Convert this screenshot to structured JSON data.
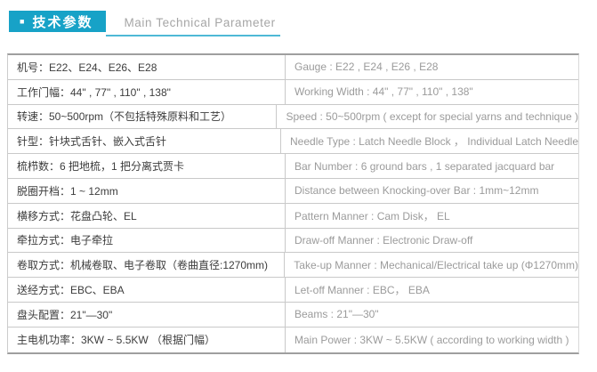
{
  "colors": {
    "accent": "#17a2c7",
    "accent_underline": "#4fb9d6",
    "border_heavy": "#9f9f9f",
    "border_light": "#c9c9c9",
    "text_cn": "#3d3d3d",
    "text_en": "#9b9b9b"
  },
  "header": {
    "bullet": "■",
    "title_cn": "技术参数",
    "title_en": "Main Technical Parameter"
  },
  "table": {
    "rows": [
      {
        "cn": "机号：E22、E24、E26、E28",
        "en": "Gauge : E22 , E24 , E26 , E28"
      },
      {
        "cn": "工作门幅：44\" , 77\" , 110\" , 138\"",
        "en": "Working Width : 44\" , 77\" , 110\" , 138\""
      },
      {
        "cn": "转速：50~500rpm（不包括特殊原料和工艺）",
        "en": "Speed : 50~500rpm ( except for special yarns and technique )"
      },
      {
        "cn": "针型：针块式舌针、嵌入式舌针",
        "en": "Needle Type : Latch Needle Block ， Individual Latch Needle"
      },
      {
        "cn": "梳栉数：6 把地梳，1 把分离式贾卡",
        "en": "Bar Number : 6 ground bars , 1 separated jacquard bar"
      },
      {
        "cn": "脱圈开档：1 ~ 12mm",
        "en": "Distance between Knocking-over Bar : 1mm~12mm"
      },
      {
        "cn": "横移方式：花盘凸轮、EL",
        "en": "Pattern Manner : Cam Disk， EL"
      },
      {
        "cn": "牵拉方式：电子牵拉",
        "en": "Draw-off Manner : Electronic Draw-off"
      },
      {
        "cn": "卷取方式：机械卷取、电子卷取（卷曲直径:1270mm)",
        "en": "Take-up Manner :  Mechanical/Electrical take up (Φ1270mm)"
      },
      {
        "cn": "送经方式：EBC、EBA",
        "en": "Let-off Manner : EBC， EBA"
      },
      {
        "cn": "盘头配置：21\"—30\"",
        "en": "Beams : 21\"—30\""
      },
      {
        "cn": "主电机功率：3KW ~ 5.5KW （根据门幅）",
        "en": "Main Power : 3KW ~ 5.5KW  ( according to working width )"
      }
    ]
  }
}
